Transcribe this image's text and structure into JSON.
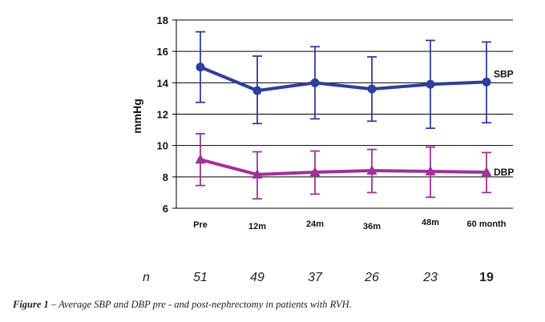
{
  "chart_data": {
    "type": "line",
    "ylabel": "mmHg",
    "ylim": [
      6,
      18
    ],
    "yticks": [
      6,
      8,
      10,
      12,
      14,
      16,
      18
    ],
    "categories": [
      "Pre",
      "12m",
      "24m",
      "36m",
      "48m",
      "60 month"
    ],
    "grid": "horizontal",
    "series": [
      {
        "name": "SBP",
        "color": "#2e3e9c",
        "marker": "circle",
        "values": [
          15.0,
          13.5,
          14.0,
          13.6,
          13.9,
          14.05
        ],
        "error_upper": [
          17.25,
          15.7,
          16.3,
          15.65,
          16.7,
          16.6
        ],
        "error_lower": [
          12.75,
          11.4,
          11.7,
          11.55,
          11.1,
          11.45
        ]
      },
      {
        "name": "DBP",
        "color": "#a0309a",
        "marker": "triangle",
        "values": [
          9.1,
          8.15,
          8.3,
          8.4,
          8.35,
          8.3
        ],
        "error_upper": [
          10.75,
          9.6,
          9.65,
          9.75,
          9.9,
          9.55
        ],
        "error_lower": [
          7.45,
          6.6,
          6.9,
          7.0,
          6.7,
          7.0
        ]
      }
    ]
  },
  "n_row": {
    "label": "n",
    "values": [
      "51",
      "49",
      "37",
      "26",
      "23",
      "19"
    ]
  },
  "caption": {
    "figure": "Figure 1",
    "text": " – Average SBP and DBP pre - and post-nephrectomy in patients with RVH."
  }
}
